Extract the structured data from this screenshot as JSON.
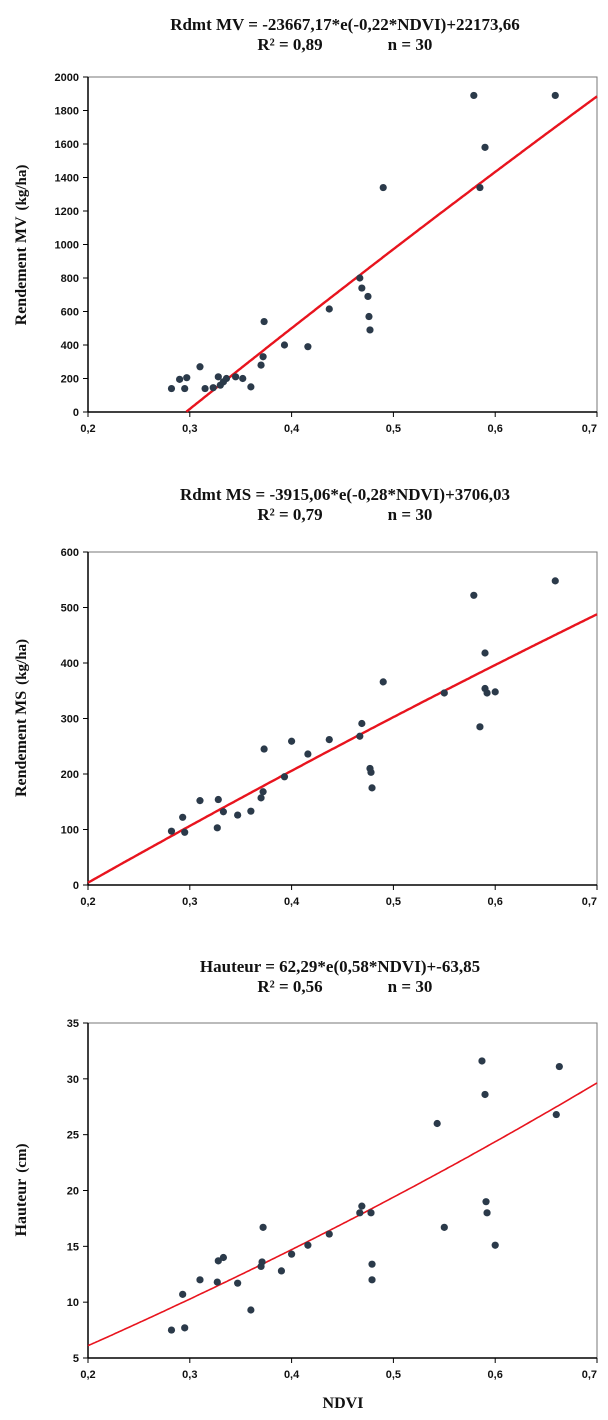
{
  "colors": {
    "points": "#2b3a4a",
    "fit_line": "#e8141e",
    "axis": "#000000"
  },
  "chart_data": [
    {
      "type": "scatter",
      "title_line1": "Rdmt MV = -23667,17*e(-0,22*NDVI)+22173,66",
      "title_line2_r2": "R² = 0,89",
      "title_line2_n": "n = 30",
      "ylabel": "Rendement MV",
      "ylabel_unit": "(kg/ha)",
      "xlabel": "",
      "xlim": [
        0.2,
        0.7
      ],
      "ylim": [
        0,
        2000
      ],
      "x_ticks": [
        "0,2",
        "0,3",
        "0,4",
        "0,5",
        "0,6",
        "0,7"
      ],
      "y_ticks": [
        "0",
        "200",
        "400",
        "600",
        "800",
        "1000",
        "1200",
        "1400",
        "1600",
        "1800",
        "2000"
      ],
      "x_tick_values": [
        0.2,
        0.3,
        0.4,
        0.5,
        0.6,
        0.7
      ],
      "y_tick_values": [
        0,
        200,
        400,
        600,
        800,
        1000,
        1200,
        1400,
        1600,
        1800,
        2000
      ],
      "points": [
        {
          "x": 0.282,
          "y": 140
        },
        {
          "x": 0.29,
          "y": 195
        },
        {
          "x": 0.295,
          "y": 140
        },
        {
          "x": 0.297,
          "y": 205
        },
        {
          "x": 0.31,
          "y": 270
        },
        {
          "x": 0.315,
          "y": 140
        },
        {
          "x": 0.323,
          "y": 145
        },
        {
          "x": 0.328,
          "y": 210
        },
        {
          "x": 0.33,
          "y": 160
        },
        {
          "x": 0.333,
          "y": 180
        },
        {
          "x": 0.336,
          "y": 200
        },
        {
          "x": 0.345,
          "y": 210
        },
        {
          "x": 0.352,
          "y": 200
        },
        {
          "x": 0.36,
          "y": 150
        },
        {
          "x": 0.37,
          "y": 280
        },
        {
          "x": 0.372,
          "y": 330
        },
        {
          "x": 0.373,
          "y": 540
        },
        {
          "x": 0.393,
          "y": 400
        },
        {
          "x": 0.416,
          "y": 390
        },
        {
          "x": 0.437,
          "y": 615
        },
        {
          "x": 0.467,
          "y": 800
        },
        {
          "x": 0.469,
          "y": 740
        },
        {
          "x": 0.475,
          "y": 690
        },
        {
          "x": 0.476,
          "y": 570
        },
        {
          "x": 0.477,
          "y": 490
        },
        {
          "x": 0.49,
          "y": 1340
        },
        {
          "x": 0.579,
          "y": 1890
        },
        {
          "x": 0.585,
          "y": 1340
        },
        {
          "x": 0.59,
          "y": 1580
        },
        {
          "x": 0.659,
          "y": 1890
        }
      ],
      "fit_type": "exp",
      "fit_params": {
        "a": -23667.17,
        "b": -0.22,
        "c": 22173.66
      }
    },
    {
      "type": "scatter",
      "title_line1": "Rdmt MS = -3915,06*e(-0,28*NDVI)+3706,03",
      "title_line2_r2": "R² = 0,79",
      "title_line2_n": "n = 30",
      "ylabel": "Rendement MS",
      "ylabel_unit": "(kg/ha)",
      "xlabel": "",
      "xlim": [
        0.2,
        0.7
      ],
      "ylim": [
        0,
        600
      ],
      "x_ticks": [
        "0,2",
        "0,3",
        "0,4",
        "0,5",
        "0,6",
        "0,7"
      ],
      "y_ticks": [
        "0",
        "100",
        "200",
        "300",
        "400",
        "500",
        "600"
      ],
      "x_tick_values": [
        0.2,
        0.3,
        0.4,
        0.5,
        0.6,
        0.7
      ],
      "y_tick_values": [
        0,
        100,
        200,
        300,
        400,
        500,
        600
      ],
      "points": [
        {
          "x": 0.282,
          "y": 97
        },
        {
          "x": 0.293,
          "y": 122
        },
        {
          "x": 0.295,
          "y": 95
        },
        {
          "x": 0.31,
          "y": 152
        },
        {
          "x": 0.327,
          "y": 103
        },
        {
          "x": 0.328,
          "y": 154
        },
        {
          "x": 0.333,
          "y": 132
        },
        {
          "x": 0.347,
          "y": 126
        },
        {
          "x": 0.36,
          "y": 133
        },
        {
          "x": 0.37,
          "y": 157
        },
        {
          "x": 0.372,
          "y": 168
        },
        {
          "x": 0.373,
          "y": 245
        },
        {
          "x": 0.393,
          "y": 195
        },
        {
          "x": 0.4,
          "y": 259
        },
        {
          "x": 0.416,
          "y": 236
        },
        {
          "x": 0.437,
          "y": 262
        },
        {
          "x": 0.467,
          "y": 268
        },
        {
          "x": 0.469,
          "y": 291
        },
        {
          "x": 0.477,
          "y": 210
        },
        {
          "x": 0.478,
          "y": 203
        },
        {
          "x": 0.479,
          "y": 175
        },
        {
          "x": 0.49,
          "y": 366
        },
        {
          "x": 0.55,
          "y": 346
        },
        {
          "x": 0.579,
          "y": 522
        },
        {
          "x": 0.585,
          "y": 285
        },
        {
          "x": 0.59,
          "y": 418
        },
        {
          "x": 0.59,
          "y": 354
        },
        {
          "x": 0.592,
          "y": 346
        },
        {
          "x": 0.6,
          "y": 348
        },
        {
          "x": 0.659,
          "y": 548
        }
      ],
      "fit_type": "exp",
      "fit_params": {
        "a": -3915.06,
        "b": -0.28,
        "c": 3706.03
      }
    },
    {
      "type": "scatter",
      "title_line1": "Hauteur = 62,29*e(0,58*NDVI)+-63,85",
      "title_line2_r2": "R² = 0,56",
      "title_line2_n": "n = 30",
      "ylabel": "Hauteur",
      "ylabel_unit": "(cm)",
      "xlabel": "NDVI",
      "xlim": [
        0.2,
        0.7
      ],
      "ylim": [
        5,
        35
      ],
      "x_ticks": [
        "0,2",
        "0,3",
        "0,4",
        "0,5",
        "0,6",
        "0,7"
      ],
      "y_ticks": [
        "5",
        "10",
        "15",
        "20",
        "25",
        "30",
        "35"
      ],
      "x_tick_values": [
        0.2,
        0.3,
        0.4,
        0.5,
        0.6,
        0.7
      ],
      "y_tick_values": [
        5,
        10,
        15,
        20,
        25,
        30,
        35
      ],
      "points": [
        {
          "x": 0.282,
          "y": 7.5
        },
        {
          "x": 0.293,
          "y": 10.7
        },
        {
          "x": 0.295,
          "y": 7.7
        },
        {
          "x": 0.31,
          "y": 12.0
        },
        {
          "x": 0.327,
          "y": 11.8
        },
        {
          "x": 0.328,
          "y": 13.7
        },
        {
          "x": 0.333,
          "y": 14.0
        },
        {
          "x": 0.347,
          "y": 11.7
        },
        {
          "x": 0.36,
          "y": 9.3
        },
        {
          "x": 0.37,
          "y": 13.2
        },
        {
          "x": 0.371,
          "y": 13.6
        },
        {
          "x": 0.372,
          "y": 16.7
        },
        {
          "x": 0.39,
          "y": 12.8
        },
        {
          "x": 0.4,
          "y": 14.3
        },
        {
          "x": 0.416,
          "y": 15.1
        },
        {
          "x": 0.437,
          "y": 16.1
        },
        {
          "x": 0.467,
          "y": 18.0
        },
        {
          "x": 0.469,
          "y": 18.6
        },
        {
          "x": 0.478,
          "y": 18.0
        },
        {
          "x": 0.479,
          "y": 13.4
        },
        {
          "x": 0.479,
          "y": 12.0
        },
        {
          "x": 0.543,
          "y": 26.0
        },
        {
          "x": 0.55,
          "y": 16.7
        },
        {
          "x": 0.587,
          "y": 31.6
        },
        {
          "x": 0.59,
          "y": 28.6
        },
        {
          "x": 0.591,
          "y": 19.0
        },
        {
          "x": 0.592,
          "y": 18.0
        },
        {
          "x": 0.6,
          "y": 15.1
        },
        {
          "x": 0.66,
          "y": 26.8
        },
        {
          "x": 0.663,
          "y": 31.1
        }
      ],
      "fit_type": "exp",
      "fit_params": {
        "a": 62.29,
        "b": 0.58,
        "c": -63.85
      }
    }
  ]
}
